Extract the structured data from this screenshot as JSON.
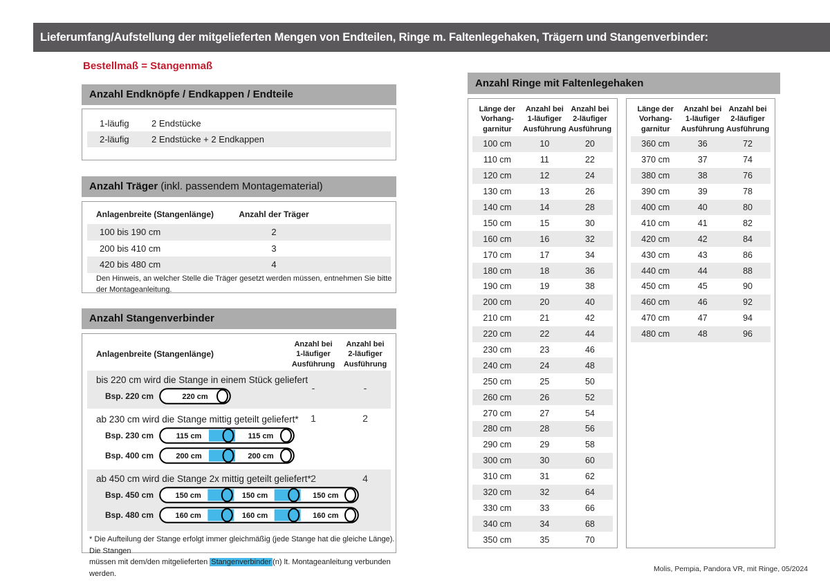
{
  "page": {
    "title": "Lieferumfang/Aufstellung der mitgelieferten Mengen von Endteilen, Ringe m. Faltenlegehaken, Trägern und Stangenverbinder:",
    "note_red": "Bestellmaß = Stangenmaß",
    "footer": "Molis, Pempia, Pandora VR, mit Ringe, 05/2024"
  },
  "colors": {
    "title_bar": "#5a585b",
    "section_header": "#acacac",
    "row_shade": "#e9e9e9",
    "accent_cyan": "#44b8e8",
    "accent_red": "#c41a2e"
  },
  "endteile": {
    "header": "Anzahl Endknöpfe / Endkappen / Endteile",
    "rows": [
      {
        "label": "1-läufig",
        "value": "2 Endstücke"
      },
      {
        "label": "2-läufig",
        "value": "2 Endstücke + 2 Endkappen"
      }
    ]
  },
  "traeger": {
    "header_bold": "Anzahl Träger",
    "header_normal": " (inkl. passendem Montagematerial)",
    "col1": "Anlagenbreite (Stangenlänge)",
    "col2": "Anzahl der Träger",
    "rows": [
      {
        "range": "100 bis 190 cm",
        "count": "2"
      },
      {
        "range": "200 bis 410 cm",
        "count": "3"
      },
      {
        "range": "420 bis 480 cm",
        "count": "4"
      }
    ],
    "note": "Den Hinweis, an welcher Stelle die Träger gesetzt werden müssen, entnehmen Sie bitte\nder Montageanleitung."
  },
  "verbinder": {
    "header": "Anzahl Stangenverbinder",
    "col1": "Anlagenbreite (Stangenlänge)",
    "col2": "Anzahl bei\n1-läufiger\nAusführung",
    "col3": "Anzahl bei\n2-läufiger\nAusführung",
    "rows": [
      {
        "text": "bis 220 cm wird die Stange in einem Stück geliefert",
        "v1": "-",
        "v2": "-",
        "rods": [
          {
            "label": "Bsp. 220 cm",
            "segments": [
              "220 cm"
            ]
          }
        ]
      },
      {
        "text": "ab 230 cm wird die Stange mittig geteilt geliefert*",
        "v1": "1",
        "v2": "2",
        "rods": [
          {
            "label": "Bsp. 230 cm",
            "segments": [
              "115 cm",
              "115 cm"
            ]
          },
          {
            "label": "Bsp. 400 cm",
            "segments": [
              "200 cm",
              "200 cm"
            ]
          }
        ]
      },
      {
        "text": "ab 450 cm wird die Stange 2x mittig geteilt geliefert*",
        "v1": "2",
        "v2": "4",
        "rods": [
          {
            "label": "Bsp. 450 cm",
            "segments": [
              "150 cm",
              "150 cm",
              "150 cm"
            ]
          },
          {
            "label": "Bsp. 480 cm",
            "segments": [
              "160 cm",
              "160 cm",
              "160 cm"
            ]
          }
        ]
      }
    ],
    "footnote_pre": "* Die Aufteilung der Stange erfolgt immer gleichmäßig (jede Stange hat die gleiche Länge). Die Stangen\nmüssen mit dem/den mitgelieferten ",
    "footnote_highlight": "Stangenverbinder",
    "footnote_post": "(n) lt. Montageanleitung verbunden werden."
  },
  "rings": {
    "header": "Anzahl Ringe mit Faltenlegehaken",
    "col_headers": [
      "Länge der\nVorhang-\ngarnitur",
      "Anzahl bei\n1-läufiger\nAusführung",
      "Anzahl bei\n2-läufiger\nAusführung"
    ],
    "left_rows": [
      [
        "100 cm",
        "10",
        "20"
      ],
      [
        "110 cm",
        "11",
        "22"
      ],
      [
        "120 cm",
        "12",
        "24"
      ],
      [
        "130 cm",
        "13",
        "26"
      ],
      [
        "140 cm",
        "14",
        "28"
      ],
      [
        "150 cm",
        "15",
        "30"
      ],
      [
        "160 cm",
        "16",
        "32"
      ],
      [
        "170 cm",
        "17",
        "34"
      ],
      [
        "180 cm",
        "18",
        "36"
      ],
      [
        "190 cm",
        "19",
        "38"
      ],
      [
        "200 cm",
        "20",
        "40"
      ],
      [
        "210 cm",
        "21",
        "42"
      ],
      [
        "220 cm",
        "22",
        "44"
      ],
      [
        "230 cm",
        "23",
        "46"
      ],
      [
        "240 cm",
        "24",
        "48"
      ],
      [
        "250 cm",
        "25",
        "50"
      ],
      [
        "260 cm",
        "26",
        "52"
      ],
      [
        "270 cm",
        "27",
        "54"
      ],
      [
        "280 cm",
        "28",
        "56"
      ],
      [
        "290 cm",
        "29",
        "58"
      ],
      [
        "300 cm",
        "30",
        "60"
      ],
      [
        "310 cm",
        "31",
        "62"
      ],
      [
        "320 cm",
        "32",
        "64"
      ],
      [
        "330 cm",
        "33",
        "66"
      ],
      [
        "340 cm",
        "34",
        "68"
      ],
      [
        "350 cm",
        "35",
        "70"
      ]
    ],
    "right_rows": [
      [
        "360 cm",
        "36",
        "72"
      ],
      [
        "370 cm",
        "37",
        "74"
      ],
      [
        "380 cm",
        "38",
        "76"
      ],
      [
        "390 cm",
        "39",
        "78"
      ],
      [
        "400 cm",
        "40",
        "80"
      ],
      [
        "410 cm",
        "41",
        "82"
      ],
      [
        "420 cm",
        "42",
        "84"
      ],
      [
        "430 cm",
        "43",
        "86"
      ],
      [
        "440 cm",
        "44",
        "88"
      ],
      [
        "450 cm",
        "45",
        "90"
      ],
      [
        "460 cm",
        "46",
        "92"
      ],
      [
        "470 cm",
        "47",
        "94"
      ],
      [
        "480 cm",
        "48",
        "96"
      ]
    ]
  }
}
